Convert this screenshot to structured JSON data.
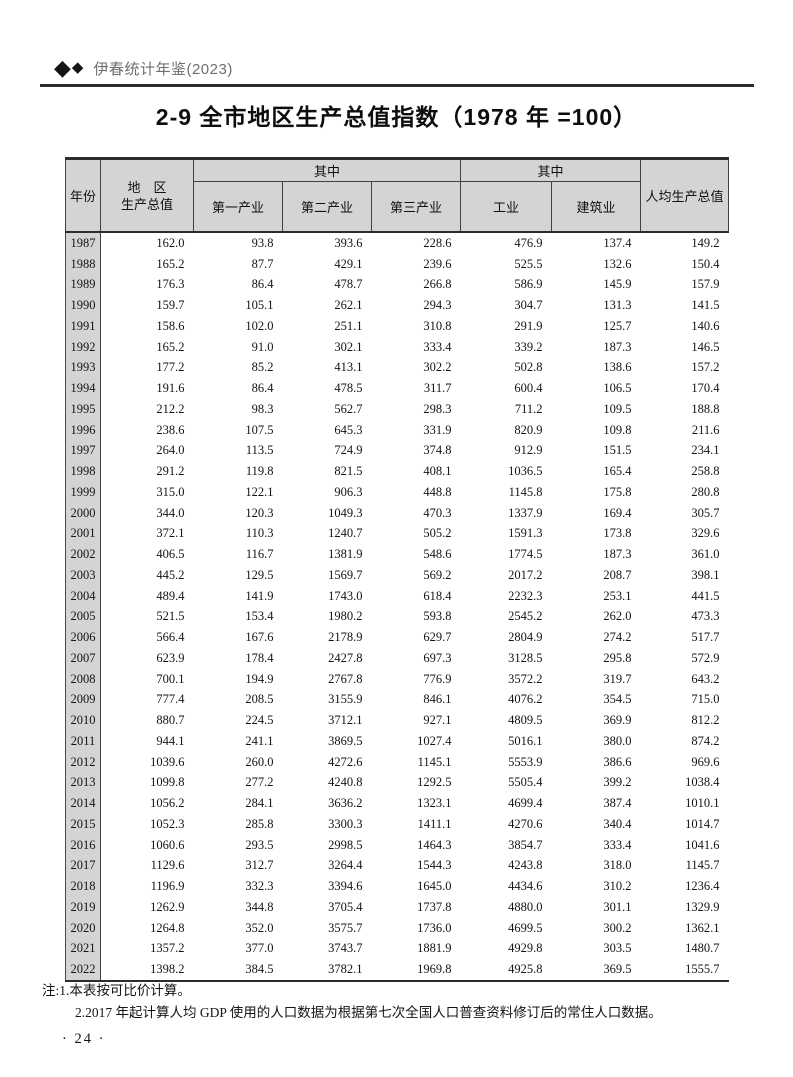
{
  "running_head": {
    "brand": "伊春统计年鉴(2023)"
  },
  "title": "2-9 全市地区生产总值指数（1978 年 =100）",
  "table": {
    "headers": {
      "year": "年份",
      "region_line1": "地　区",
      "region_line2": "生产总值",
      "of_which_1": "其中",
      "of_which_2": "其中",
      "primary": "第一产业",
      "secondary": "第二产业",
      "tertiary": "第三产业",
      "industry": "工业",
      "construction": "建筑业",
      "per_capita": "人均生产总值"
    },
    "rows": [
      [
        "1987",
        "162.0",
        "93.8",
        "393.6",
        "228.6",
        "476.9",
        "137.4",
        "149.2"
      ],
      [
        "1988",
        "165.2",
        "87.7",
        "429.1",
        "239.6",
        "525.5",
        "132.6",
        "150.4"
      ],
      [
        "1989",
        "176.3",
        "86.4",
        "478.7",
        "266.8",
        "586.9",
        "145.9",
        "157.9"
      ],
      [
        "1990",
        "159.7",
        "105.1",
        "262.1",
        "294.3",
        "304.7",
        "131.3",
        "141.5"
      ],
      [
        "1991",
        "158.6",
        "102.0",
        "251.1",
        "310.8",
        "291.9",
        "125.7",
        "140.6"
      ],
      [
        "1992",
        "165.2",
        "91.0",
        "302.1",
        "333.4",
        "339.2",
        "187.3",
        "146.5"
      ],
      [
        "1993",
        "177.2",
        "85.2",
        "413.1",
        "302.2",
        "502.8",
        "138.6",
        "157.2"
      ],
      [
        "1994",
        "191.6",
        "86.4",
        "478.5",
        "311.7",
        "600.4",
        "106.5",
        "170.4"
      ],
      [
        "1995",
        "212.2",
        "98.3",
        "562.7",
        "298.3",
        "711.2",
        "109.5",
        "188.8"
      ],
      [
        "1996",
        "238.6",
        "107.5",
        "645.3",
        "331.9",
        "820.9",
        "109.8",
        "211.6"
      ],
      [
        "1997",
        "264.0",
        "113.5",
        "724.9",
        "374.8",
        "912.9",
        "151.5",
        "234.1"
      ],
      [
        "1998",
        "291.2",
        "119.8",
        "821.5",
        "408.1",
        "1036.5",
        "165.4",
        "258.8"
      ],
      [
        "1999",
        "315.0",
        "122.1",
        "906.3",
        "448.8",
        "1145.8",
        "175.8",
        "280.8"
      ],
      [
        "2000",
        "344.0",
        "120.3",
        "1049.3",
        "470.3",
        "1337.9",
        "169.4",
        "305.7"
      ],
      [
        "2001",
        "372.1",
        "110.3",
        "1240.7",
        "505.2",
        "1591.3",
        "173.8",
        "329.6"
      ],
      [
        "2002",
        "406.5",
        "116.7",
        "1381.9",
        "548.6",
        "1774.5",
        "187.3",
        "361.0"
      ],
      [
        "2003",
        "445.2",
        "129.5",
        "1569.7",
        "569.2",
        "2017.2",
        "208.7",
        "398.1"
      ],
      [
        "2004",
        "489.4",
        "141.9",
        "1743.0",
        "618.4",
        "2232.3",
        "253.1",
        "441.5"
      ],
      [
        "2005",
        "521.5",
        "153.4",
        "1980.2",
        "593.8",
        "2545.2",
        "262.0",
        "473.3"
      ],
      [
        "2006",
        "566.4",
        "167.6",
        "2178.9",
        "629.7",
        "2804.9",
        "274.2",
        "517.7"
      ],
      [
        "2007",
        "623.9",
        "178.4",
        "2427.8",
        "697.3",
        "3128.5",
        "295.8",
        "572.9"
      ],
      [
        "2008",
        "700.1",
        "194.9",
        "2767.8",
        "776.9",
        "3572.2",
        "319.7",
        "643.2"
      ],
      [
        "2009",
        "777.4",
        "208.5",
        "3155.9",
        "846.1",
        "4076.2",
        "354.5",
        "715.0"
      ],
      [
        "2010",
        "880.7",
        "224.5",
        "3712.1",
        "927.1",
        "4809.5",
        "369.9",
        "812.2"
      ],
      [
        "2011",
        "944.1",
        "241.1",
        "3869.5",
        "1027.4",
        "5016.1",
        "380.0",
        "874.2"
      ],
      [
        "2012",
        "1039.6",
        "260.0",
        "4272.6",
        "1145.1",
        "5553.9",
        "386.6",
        "969.6"
      ],
      [
        "2013",
        "1099.8",
        "277.2",
        "4240.8",
        "1292.5",
        "5505.4",
        "399.2",
        "1038.4"
      ],
      [
        "2014",
        "1056.2",
        "284.1",
        "3636.2",
        "1323.1",
        "4699.4",
        "387.4",
        "1010.1"
      ],
      [
        "2015",
        "1052.3",
        "285.8",
        "3300.3",
        "1411.1",
        "4270.6",
        "340.4",
        "1014.7"
      ],
      [
        "2016",
        "1060.6",
        "293.5",
        "2998.5",
        "1464.3",
        "3854.7",
        "333.4",
        "1041.6"
      ],
      [
        "2017",
        "1129.6",
        "312.7",
        "3264.4",
        "1544.3",
        "4243.8",
        "318.0",
        "1145.7"
      ],
      [
        "2018",
        "1196.9",
        "332.3",
        "3394.6",
        "1645.0",
        "4434.6",
        "310.2",
        "1236.4"
      ],
      [
        "2019",
        "1262.9",
        "344.8",
        "3705.4",
        "1737.8",
        "4880.0",
        "301.1",
        "1329.9"
      ],
      [
        "2020",
        "1264.8",
        "352.0",
        "3575.7",
        "1736.0",
        "4699.5",
        "300.2",
        "1362.1"
      ],
      [
        "2021",
        "1357.2",
        "377.0",
        "3743.7",
        "1881.9",
        "4929.8",
        "303.5",
        "1480.7"
      ],
      [
        "2022",
        "1398.2",
        "384.5",
        "3782.1",
        "1969.8",
        "4925.8",
        "369.5",
        "1555.7"
      ]
    ]
  },
  "notes": {
    "line1": "注:1.本表按可比价计算。",
    "line2": "2.2017 年起计算人均 GDP 使用的人口数据为根据第七次全国人口普查资料修订后的常住人口数据。"
  },
  "page_number": "· 24 ·"
}
